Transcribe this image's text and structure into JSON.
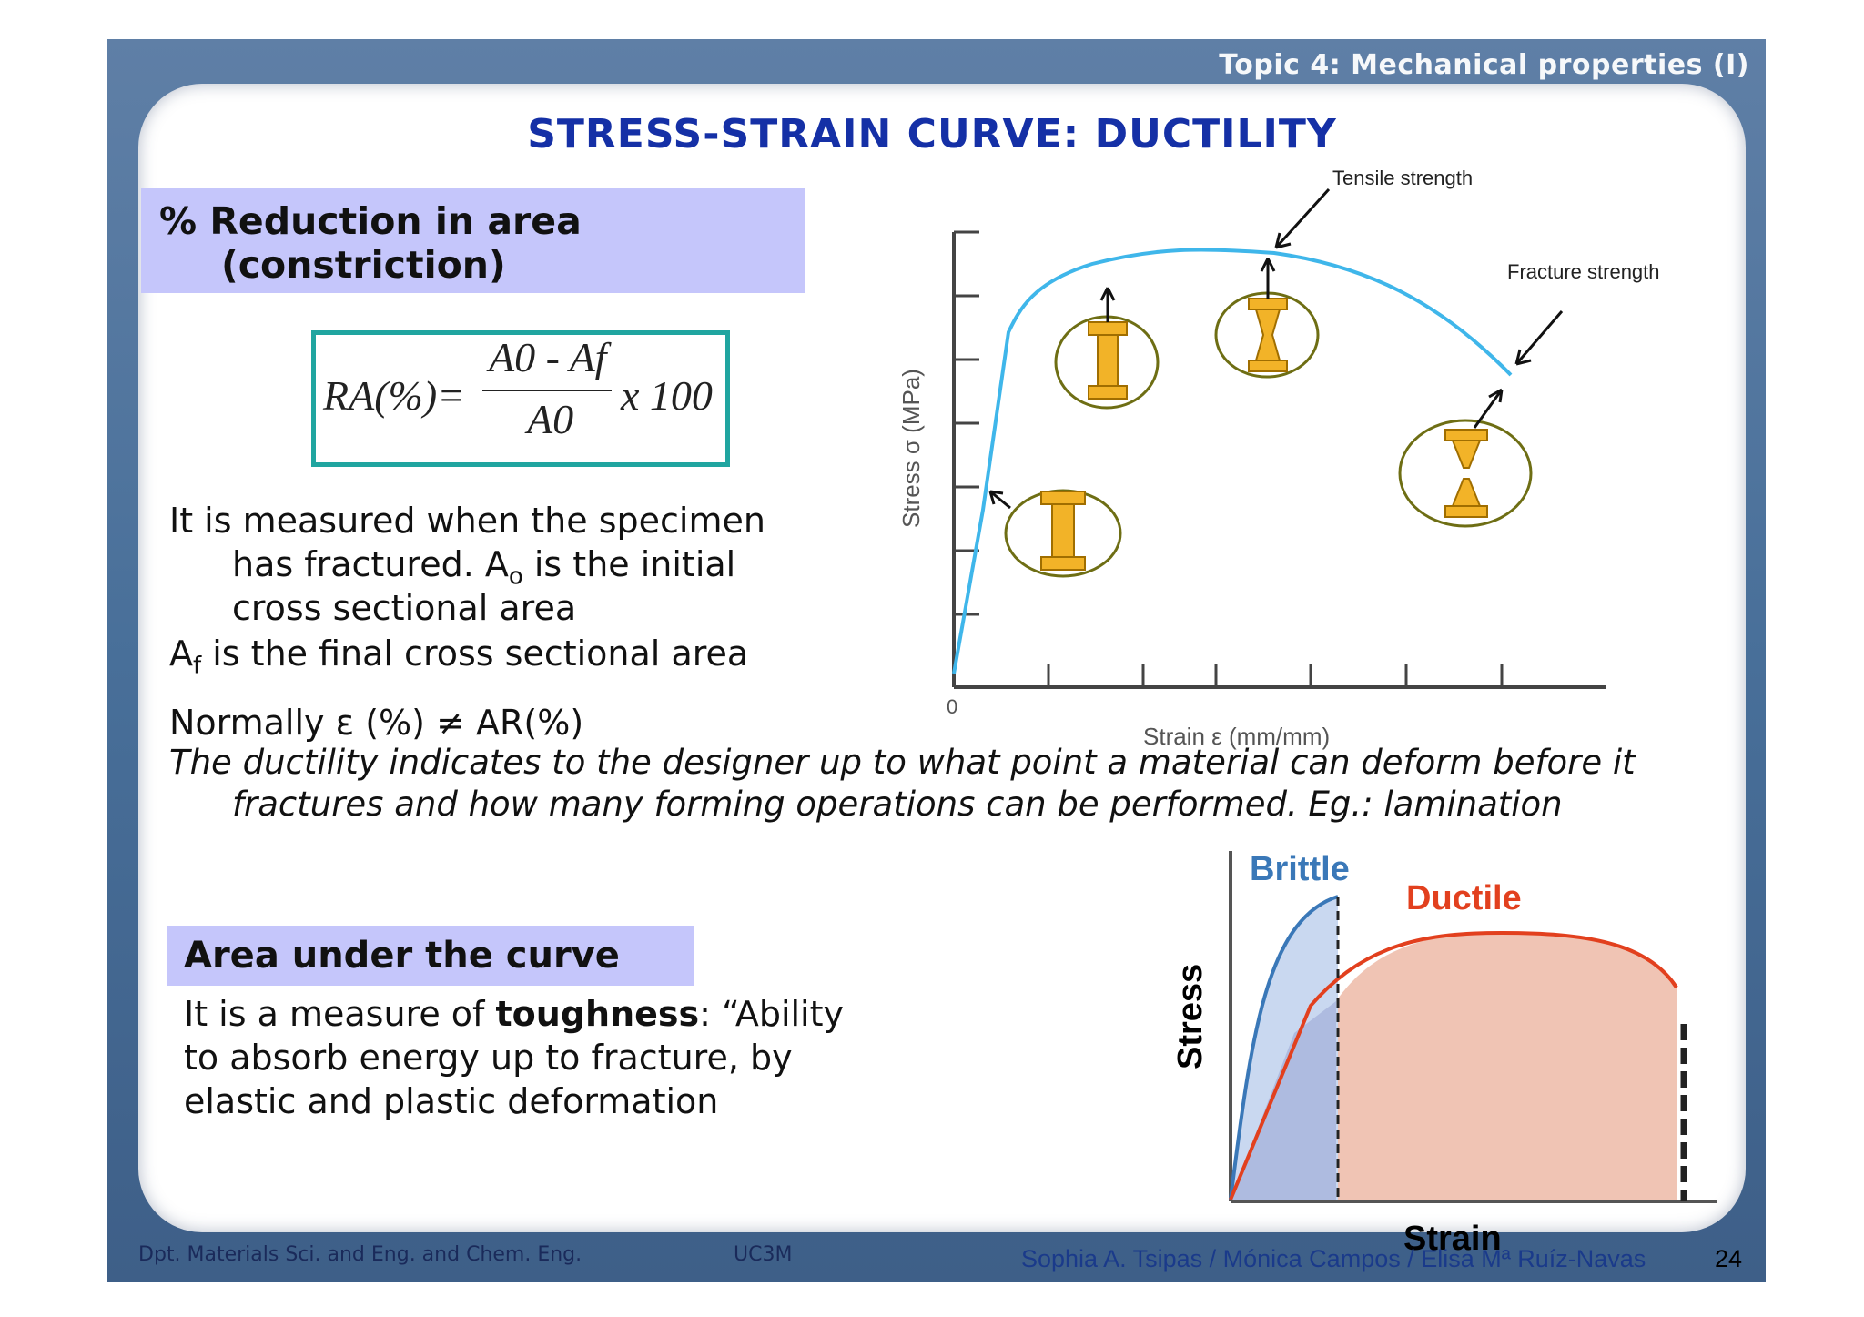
{
  "header": {
    "topic": "Topic 4: Mechanical properties (I)",
    "title": "STRESS-STRAIN CURVE: DUCTILITY"
  },
  "section1": {
    "heading_line1": "% Reduction in area",
    "heading_line2": "(constriction)",
    "formula": {
      "lhs": "RA(%)=",
      "numerator": "A0 - Af",
      "denominator": "A0",
      "factor": "x 100"
    },
    "p1_line1": "It is measured when the specimen",
    "p1_line2a": "has fractured.  A",
    "p1_line2_sub": "o",
    "p1_line2b": " is the initial",
    "p1_line3": "cross sectional area",
    "p2a": "A",
    "p2_sub": "f",
    "p2b": " is the final cross sectional area",
    "normally": "Normally ε (%) ≠ AR(%)",
    "italic_line1": "The ductility indicates to the designer up to what point a material  can deform before it",
    "italic_line2": "fractures and how many forming operations can be performed. Eg.: lamination"
  },
  "chart1": {
    "ylabel": "Stress σ (MPa)",
    "xlabel": "Strain ε (mm/mm)",
    "origin": "0",
    "annot_tensile": "Tensile strength",
    "annot_fracture": "Fracture strength",
    "curve_color": "#3fb6ea",
    "specimen_color": "#f2b328"
  },
  "section2": {
    "heading": "Area under the  curve",
    "line1a": "It is a measure of ",
    "line1b": "toughness",
    "line1c": ": “Ability",
    "line2": "to absorb energy up to fracture, by",
    "line3": "elastic and plastic deformation"
  },
  "chart2": {
    "ylabel": "Stress",
    "xlabel": "Strain",
    "brittle_label": "Brittle",
    "ductile_label": "Ductile",
    "brittle_color": "#3a78b8",
    "ductile_color": "#e2401e"
  },
  "footer": {
    "dept": "Dpt. Materials Sci. and Eng. and Chem. Eng.",
    "univ": "UC3M",
    "authors": "Sophia A. Tsipas / Mónica Campos / Elisa Mª Ruíz-Navas",
    "page": "24"
  }
}
